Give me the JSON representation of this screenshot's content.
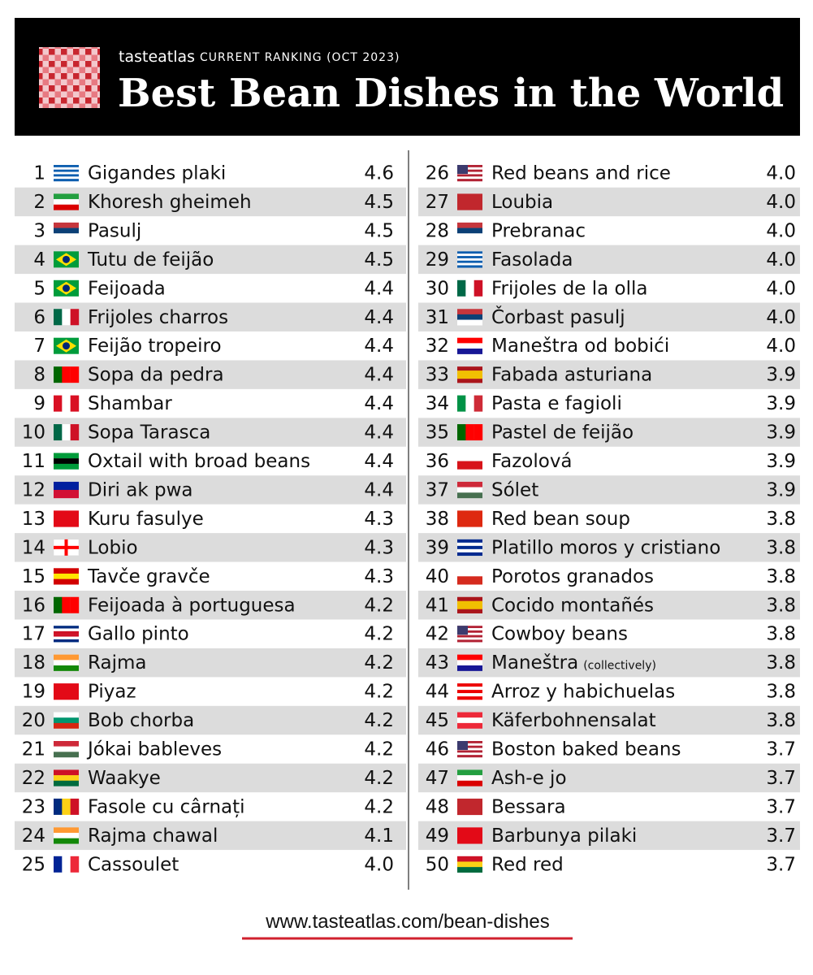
{
  "header": {
    "brand": "tasteatlas",
    "subtitle": "CURRENT RANKING (OCT 2023)",
    "title": "Best Bean Dishes in the World"
  },
  "rows": [
    {
      "rank": 1,
      "name": "Gigandes plaki",
      "rating": "4.6"
    },
    {
      "rank": 2,
      "name": "Khoresh gheimeh",
      "rating": "4.5"
    },
    {
      "rank": 3,
      "name": "Pasulj",
      "rating": "4.5"
    },
    {
      "rank": 4,
      "name": "Tutu de feijão",
      "rating": "4.5"
    },
    {
      "rank": 5,
      "name": "Feijoada",
      "rating": "4.4"
    },
    {
      "rank": 6,
      "name": "Frijoles charros",
      "rating": "4.4"
    },
    {
      "rank": 7,
      "name": "Feijão tropeiro",
      "rating": "4.4"
    },
    {
      "rank": 8,
      "name": "Sopa da pedra",
      "rating": "4.4"
    },
    {
      "rank": 9,
      "name": "Shambar",
      "rating": "4.4"
    },
    {
      "rank": 10,
      "name": "Sopa Tarasca",
      "rating": "4.4"
    },
    {
      "rank": 11,
      "name": "Oxtail with broad beans",
      "rating": "4.4"
    },
    {
      "rank": 12,
      "name": "Diri ak pwa",
      "rating": "4.4"
    },
    {
      "rank": 13,
      "name": "Kuru fasulye",
      "rating": "4.3"
    },
    {
      "rank": 14,
      "name": "Lobio",
      "rating": "4.3"
    },
    {
      "rank": 15,
      "name": "Tavče gravče",
      "rating": "4.3"
    },
    {
      "rank": 16,
      "name": "Feijoada à portuguesa",
      "rating": "4.2"
    },
    {
      "rank": 17,
      "name": "Gallo pinto",
      "rating": "4.2"
    },
    {
      "rank": 18,
      "name": "Rajma",
      "rating": "4.2"
    },
    {
      "rank": 19,
      "name": "Piyaz",
      "rating": "4.2"
    },
    {
      "rank": 20,
      "name": "Bob chorba",
      "rating": "4.2"
    },
    {
      "rank": 21,
      "name": "Jókai bableves",
      "rating": "4.2"
    },
    {
      "rank": 22,
      "name": "Waakye",
      "rating": "4.2"
    },
    {
      "rank": 23,
      "name": "Fasole cu cârnați",
      "rating": "4.2"
    },
    {
      "rank": 24,
      "name": "Rajma chawal",
      "rating": "4.1"
    },
    {
      "rank": 25,
      "name": "Cassoulet",
      "rating": "4.0"
    },
    {
      "rank": 26,
      "name": "Red beans and rice",
      "rating": "4.0"
    },
    {
      "rank": 27,
      "name": "Loubia",
      "rating": "4.0"
    },
    {
      "rank": 28,
      "name": "Prebranac",
      "rating": "4.0"
    },
    {
      "rank": 29,
      "name": "Fasolada",
      "rating": "4.0"
    },
    {
      "rank": 30,
      "name": "Frijoles de la olla",
      "rating": "4.0"
    },
    {
      "rank": 31,
      "name": "Čorbast pasulj",
      "rating": "4.0"
    },
    {
      "rank": 32,
      "name": "Maneštra od bobići",
      "rating": "4.0"
    },
    {
      "rank": 33,
      "name": "Fabada asturiana",
      "rating": "3.9"
    },
    {
      "rank": 34,
      "name": "Pasta e fagioli",
      "rating": "3.9"
    },
    {
      "rank": 35,
      "name": "Pastel de feijão",
      "rating": "3.9"
    },
    {
      "rank": 36,
      "name": "Fazolová",
      "rating": "3.9"
    },
    {
      "rank": 37,
      "name": "Sólet",
      "rating": "3.9"
    },
    {
      "rank": 38,
      "name": "Red bean soup",
      "rating": "3.8"
    },
    {
      "rank": 39,
      "name": "Platillo moros y cristiano",
      "rating": "3.8"
    },
    {
      "rank": 40,
      "name": "Porotos granados",
      "rating": "3.8"
    },
    {
      "rank": 41,
      "name": "Cocido montañés",
      "rating": "3.8"
    },
    {
      "rank": 42,
      "name": "Cowboy beans",
      "rating": "3.8"
    },
    {
      "rank": 43,
      "name": "Maneštra",
      "note": "(collectively)",
      "rating": "3.8"
    },
    {
      "rank": 44,
      "name": "Arroz y habichuelas",
      "rating": "3.8"
    },
    {
      "rank": 45,
      "name": "Käferbohnensalat",
      "rating": "3.8"
    },
    {
      "rank": 46,
      "name": "Boston baked beans",
      "rating": "3.7"
    },
    {
      "rank": 47,
      "name": "Ash-e jo",
      "rating": "3.7"
    },
    {
      "rank": 48,
      "name": "Bessara",
      "rating": "3.7"
    },
    {
      "rank": 49,
      "name": "Barbunya pilaki",
      "rating": "3.7"
    },
    {
      "rank": 50,
      "name": "Red red",
      "rating": "3.7"
    }
  ],
  "footer": {
    "url": "www.tasteatlas.com/bean-dishes"
  }
}
